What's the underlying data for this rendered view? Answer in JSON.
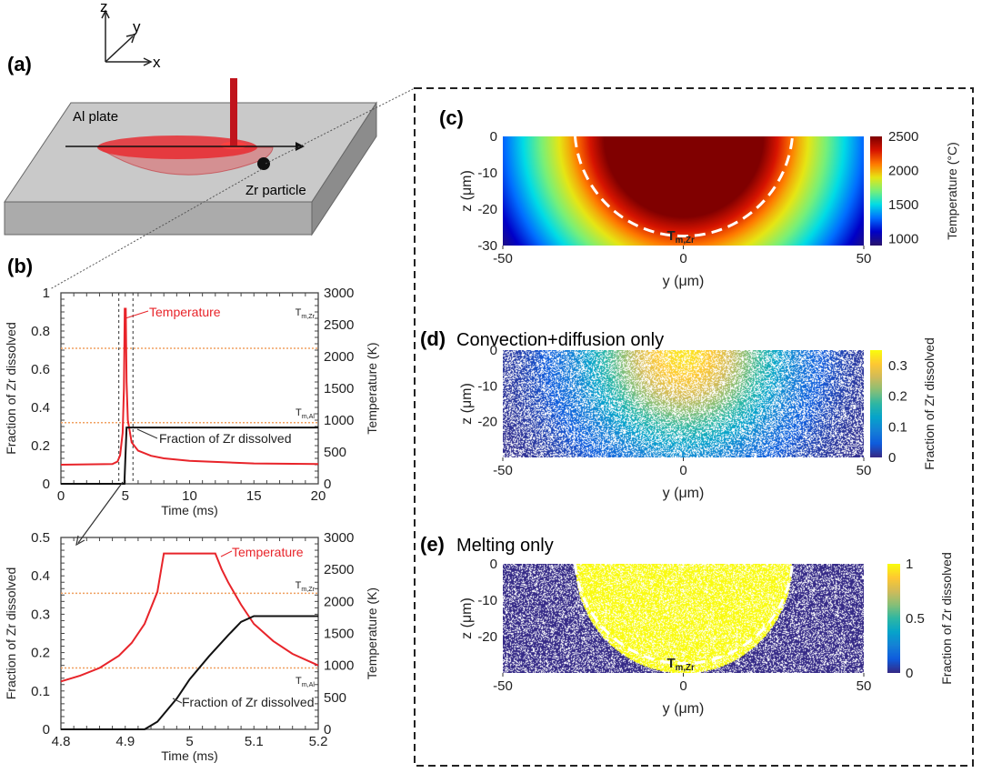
{
  "panel_labels": {
    "a": "(a)",
    "b": "(b)",
    "c": "(c)",
    "d": "(d)",
    "e": "(e)"
  },
  "schematic": {
    "axis_labels": {
      "z": "z",
      "y": "y",
      "x": "x"
    },
    "plate_label": "Al plate",
    "particle_label": "Zr particle",
    "colors": {
      "plate_top": "#c9c9c9",
      "plate_front": "#ababab",
      "plate_side": "#8c8c8c",
      "melt_pool": "#e8242a",
      "laser": "#c0141c"
    }
  },
  "colors": {
    "temperature": "#e8242a",
    "fraction": "#111111",
    "melting_lines": "#f0a060"
  },
  "chart_data": [
    {
      "id": "b-full",
      "type": "line",
      "xlabel": "Time (ms)",
      "ylabel": "Fraction of Zr dissolved",
      "y2label": "Temperature (K)",
      "xlim": [
        0,
        20
      ],
      "ylim": [
        0,
        1
      ],
      "y2lim": [
        0,
        3000
      ],
      "xticks": [
        "0",
        "5",
        "10",
        "15",
        "20"
      ],
      "yticks": [
        "0",
        "0.2",
        "0.4",
        "0.6",
        "0.8",
        "1"
      ],
      "y2ticks": [
        "0",
        "500",
        "1000",
        "1500",
        "2000",
        "2500",
        "3000"
      ],
      "series": [
        {
          "name": "Temperature",
          "axis": "right",
          "x": [
            0,
            4,
            4.4,
            4.6,
            4.8,
            4.9,
            4.96,
            5.04,
            5.1,
            5.2,
            5.5,
            6,
            7,
            8,
            10,
            15,
            20
          ],
          "y": [
            300,
            310,
            350,
            450,
            800,
            1500,
            2750,
            2750,
            1600,
            1000,
            650,
            520,
            440,
            400,
            360,
            320,
            310
          ]
        },
        {
          "name": "Fraction of Zr dissolved",
          "axis": "left",
          "x": [
            0,
            4.93,
            5.1,
            20
          ],
          "y": [
            0,
            0,
            0.295,
            0.295
          ]
        }
      ],
      "reference_lines": [
        {
          "label_base": "T",
          "label_sub": "m,Zr",
          "value_K": 2128
        },
        {
          "label_base": "T",
          "label_sub": "m,Al",
          "value_K": 960
        }
      ],
      "zoom_window_ms": [
        4.5,
        5.6
      ]
    },
    {
      "id": "b-zoom",
      "type": "line",
      "xlabel": "Time (ms)",
      "ylabel": "Fraction of Zr dissolved",
      "y2label": "Temperature (K)",
      "xlim": [
        4.8,
        5.2
      ],
      "ylim": [
        0,
        0.5
      ],
      "y2lim": [
        0,
        3000
      ],
      "xticks": [
        "4.8",
        "4.9",
        "5",
        "5.1",
        "5.2"
      ],
      "yticks": [
        "0",
        "0.1",
        "0.2",
        "0.3",
        "0.4",
        "0.5"
      ],
      "y2ticks": [
        "0",
        "500",
        "1000",
        "1500",
        "2000",
        "2500",
        "3000"
      ],
      "series": [
        {
          "name": "Temperature",
          "axis": "right",
          "x": [
            4.8,
            4.83,
            4.86,
            4.89,
            4.91,
            4.93,
            4.95,
            4.96,
            5.04,
            5.05,
            5.06,
            5.08,
            5.1,
            5.13,
            5.16,
            5.2
          ],
          "y": [
            750,
            840,
            960,
            1150,
            1350,
            1650,
            2150,
            2750,
            2750,
            2500,
            2300,
            1950,
            1650,
            1380,
            1180,
            1000
          ]
        },
        {
          "name": "Fraction of Zr dissolved",
          "axis": "left",
          "x": [
            4.8,
            4.93,
            4.95,
            4.98,
            5.0,
            5.03,
            5.06,
            5.08,
            5.1,
            5.2
          ],
          "y": [
            0,
            0,
            0.02,
            0.08,
            0.13,
            0.19,
            0.245,
            0.28,
            0.295,
            0.295
          ]
        }
      ],
      "reference_lines": [
        {
          "label_base": "T",
          "label_sub": "m,Zr",
          "value_K": 2128
        },
        {
          "label_base": "T",
          "label_sub": "m,Al",
          "value_K": 960
        }
      ]
    },
    {
      "id": "c",
      "type": "heatmap",
      "title": "",
      "xlabel": "y (μm)",
      "ylabel": "z (μm)",
      "xlim": [
        -50,
        50
      ],
      "ylim": [
        -30,
        0
      ],
      "xticks": [
        "-50",
        "0",
        "50"
      ],
      "yticks": [
        "0",
        "-10",
        "-20",
        "-30"
      ],
      "colormap": "jet",
      "colorbar_label": "Temperature (°C)",
      "clim": [
        900,
        2500
      ],
      "colorbar_ticks": [
        "1000",
        "1500",
        "2000",
        "2500"
      ],
      "melt_boundary_radius_um": 30,
      "annotation": {
        "base": "T",
        "sub": "m,Zr"
      }
    },
    {
      "id": "d",
      "type": "heatmap",
      "title": "Convection+diffusion only",
      "xlabel": "y (μm)",
      "ylabel": "z (μm)",
      "xlim": [
        -50,
        50
      ],
      "ylim": [
        -30,
        0
      ],
      "xticks": [
        "-50",
        "0",
        "50"
      ],
      "yticks": [
        "0",
        "-10",
        "-20"
      ],
      "colormap": "parula",
      "colorbar_label": "Fraction of Zr dissolved",
      "clim": [
        0,
        0.35
      ],
      "colorbar_ticks": [
        "0",
        "0.1",
        "0.2",
        "0.3"
      ],
      "peak_value": 0.33
    },
    {
      "id": "e",
      "type": "heatmap",
      "title": "Melting only",
      "xlabel": "y (μm)",
      "ylabel": "z (μm)",
      "xlim": [
        -50,
        50
      ],
      "ylim": [
        -30,
        0
      ],
      "xticks": [
        "-50",
        "0",
        "50"
      ],
      "yticks": [
        "0",
        "-10",
        "-20"
      ],
      "colormap": "parula",
      "colorbar_label": "Fraction of Zr dissolved",
      "clim": [
        0,
        1
      ],
      "colorbar_ticks": [
        "0",
        "0.5",
        "1"
      ],
      "melt_boundary_radius_um": 30,
      "annotation": {
        "base": "T",
        "sub": "m,Zr"
      }
    }
  ]
}
